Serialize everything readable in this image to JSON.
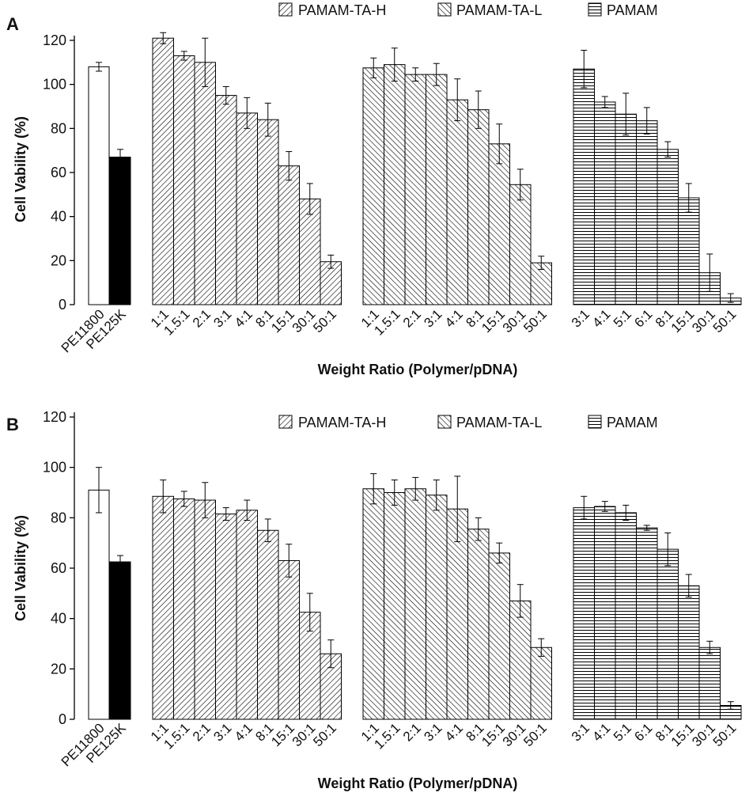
{
  "chart_data": [
    {
      "panel_label": "A",
      "type": "bar",
      "ylabel": "Cell Vability (%)",
      "xlabel": "Weight Ratio (Polymer/pDNA)",
      "ylim": [
        0,
        120
      ],
      "yticks": [
        0,
        20,
        40,
        60,
        80,
        100,
        120
      ],
      "legend": [
        {
          "name": "PAMAM-TA-H",
          "pattern": "diag-back"
        },
        {
          "name": "PAMAM-TA-L",
          "pattern": "diag-fwd"
        },
        {
          "name": "PAMAM",
          "pattern": "horiz"
        }
      ],
      "groups": [
        {
          "name": "Controls",
          "pattern": "controls",
          "categories": [
            "PE11800",
            "PE125K"
          ],
          "values": [
            108,
            67
          ],
          "errors": [
            2,
            3.5
          ],
          "fills": [
            "#ffffff",
            "#000000"
          ]
        },
        {
          "name": "PAMAM-TA-H",
          "pattern": "diag-back",
          "categories": [
            "1:1",
            "1.5:1",
            "2:1",
            "3:1",
            "4:1",
            "8:1",
            "15:1",
            "30:1",
            "50:1"
          ],
          "values": [
            121,
            113,
            110,
            95,
            87,
            84,
            63,
            48,
            19.5
          ],
          "errors": [
            2.5,
            2,
            11,
            4,
            7,
            7.5,
            6.5,
            7,
            3
          ]
        },
        {
          "name": "PAMAM-TA-L",
          "pattern": "diag-fwd",
          "categories": [
            "1:1",
            "1.5:1",
            "2:1",
            "3:1",
            "4:1",
            "8:1",
            "15:1",
            "30:1",
            "50:1"
          ],
          "values": [
            107.5,
            109,
            104.5,
            104.5,
            93,
            88.5,
            73,
            54.5,
            19
          ],
          "errors": [
            4.5,
            7.5,
            3,
            5,
            9.5,
            8.5,
            9,
            7,
            3
          ]
        },
        {
          "name": "PAMAM",
          "pattern": "horiz",
          "categories": [
            "3:1",
            "4:1",
            "5:1",
            "6:1",
            "8:1",
            "15:1",
            "30:1",
            "50:1"
          ],
          "values": [
            107,
            92,
            86.5,
            83.5,
            70.5,
            48.5,
            14.5,
            3
          ],
          "errors": [
            8.5,
            2.5,
            9.5,
            6,
            3.5,
            6.5,
            8.5,
            2
          ]
        }
      ]
    },
    {
      "panel_label": "B",
      "type": "bar",
      "ylabel": "Cell Vability (%)",
      "xlabel": "Weight Ratio (Polymer/pDNA)",
      "ylim": [
        0,
        120
      ],
      "yticks": [
        0,
        20,
        40,
        60,
        80,
        100,
        120
      ],
      "legend": [
        {
          "name": "PAMAM-TA-H",
          "pattern": "diag-back"
        },
        {
          "name": "PAMAM-TA-L",
          "pattern": "diag-fwd"
        },
        {
          "name": "PAMAM",
          "pattern": "horiz"
        }
      ],
      "groups": [
        {
          "name": "Controls",
          "pattern": "controls",
          "categories": [
            "PE11800",
            "PE125K"
          ],
          "values": [
            91,
            62.5
          ],
          "errors": [
            9,
            2.5
          ],
          "fills": [
            "#ffffff",
            "#000000"
          ]
        },
        {
          "name": "PAMAM-TA-H",
          "pattern": "diag-back",
          "categories": [
            "1:1",
            "1.5:1",
            "2:1",
            "3:1",
            "4:1",
            "8:1",
            "15:1",
            "30:1",
            "50:1"
          ],
          "values": [
            88.5,
            87.5,
            87,
            81.5,
            83,
            75,
            63,
            42.5,
            26
          ],
          "errors": [
            6.5,
            3,
            7,
            2.5,
            4,
            4.5,
            6.5,
            7.5,
            5.5
          ]
        },
        {
          "name": "PAMAM-TA-L",
          "pattern": "diag-fwd",
          "categories": [
            "1:1",
            "1.5:1",
            "2:1",
            "3:1",
            "4:1",
            "8:1",
            "15:1",
            "30:1",
            "50:1"
          ],
          "values": [
            91.5,
            90,
            91.5,
            89,
            83.5,
            75.5,
            66,
            47,
            28.5
          ],
          "errors": [
            6,
            5,
            4.5,
            6,
            13,
            4.5,
            4,
            6.5,
            3.5
          ]
        },
        {
          "name": "PAMAM",
          "pattern": "horiz",
          "categories": [
            "3:1",
            "4:1",
            "5:1",
            "6:1",
            "8:1",
            "15:1",
            "30:1",
            "50:1"
          ],
          "values": [
            84,
            84.5,
            82,
            76,
            67.5,
            53,
            28.5,
            5.5
          ],
          "errors": [
            4.5,
            2,
            3,
            1,
            6.5,
            4.5,
            2.5,
            1.5
          ]
        }
      ]
    }
  ]
}
